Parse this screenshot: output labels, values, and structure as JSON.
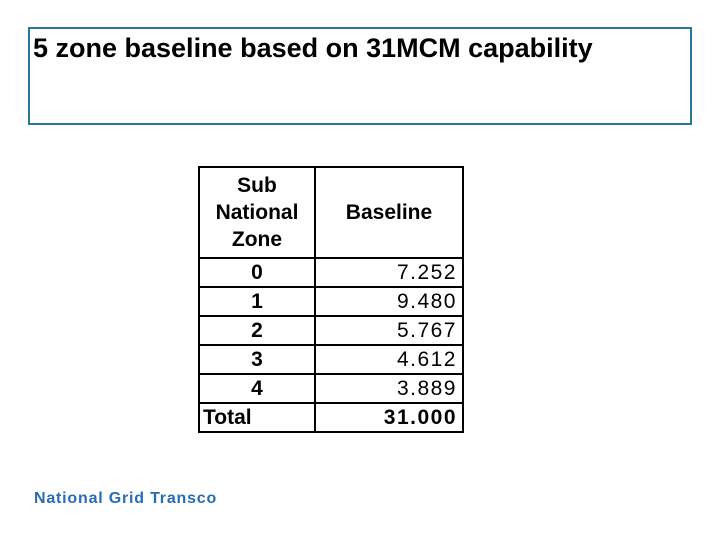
{
  "title": {
    "text": "5 zone baseline based on 31MCM capability"
  },
  "footer": {
    "logo_text": "National Grid Transco"
  },
  "colors": {
    "slide_background": "#ffffff",
    "title_box_border": "#2a74a0",
    "table_border": "#000000",
    "text_black": "#000000",
    "logo_blue": "#2a6cb4"
  },
  "table": {
    "columns": [
      "Sub\nNational\nZone",
      "Baseline"
    ],
    "rows": [
      [
        "0",
        "7.252"
      ],
      [
        "1",
        "9.480"
      ],
      [
        "2",
        "5.767"
      ],
      [
        "3",
        "4.612"
      ],
      [
        "4",
        "3.889"
      ]
    ],
    "total": {
      "label": "Total",
      "value": "31.000"
    }
  },
  "chart_data": {
    "type": "table",
    "title": "5 zone baseline based on 31MCM capability",
    "columns": [
      "Sub National Zone",
      "Baseline"
    ],
    "rows": [
      [
        0,
        7.252
      ],
      [
        1,
        9.48
      ],
      [
        2,
        5.767
      ],
      [
        3,
        4.612
      ],
      [
        4,
        3.889
      ]
    ],
    "total_label": "Total",
    "total_value": 31.0
  }
}
